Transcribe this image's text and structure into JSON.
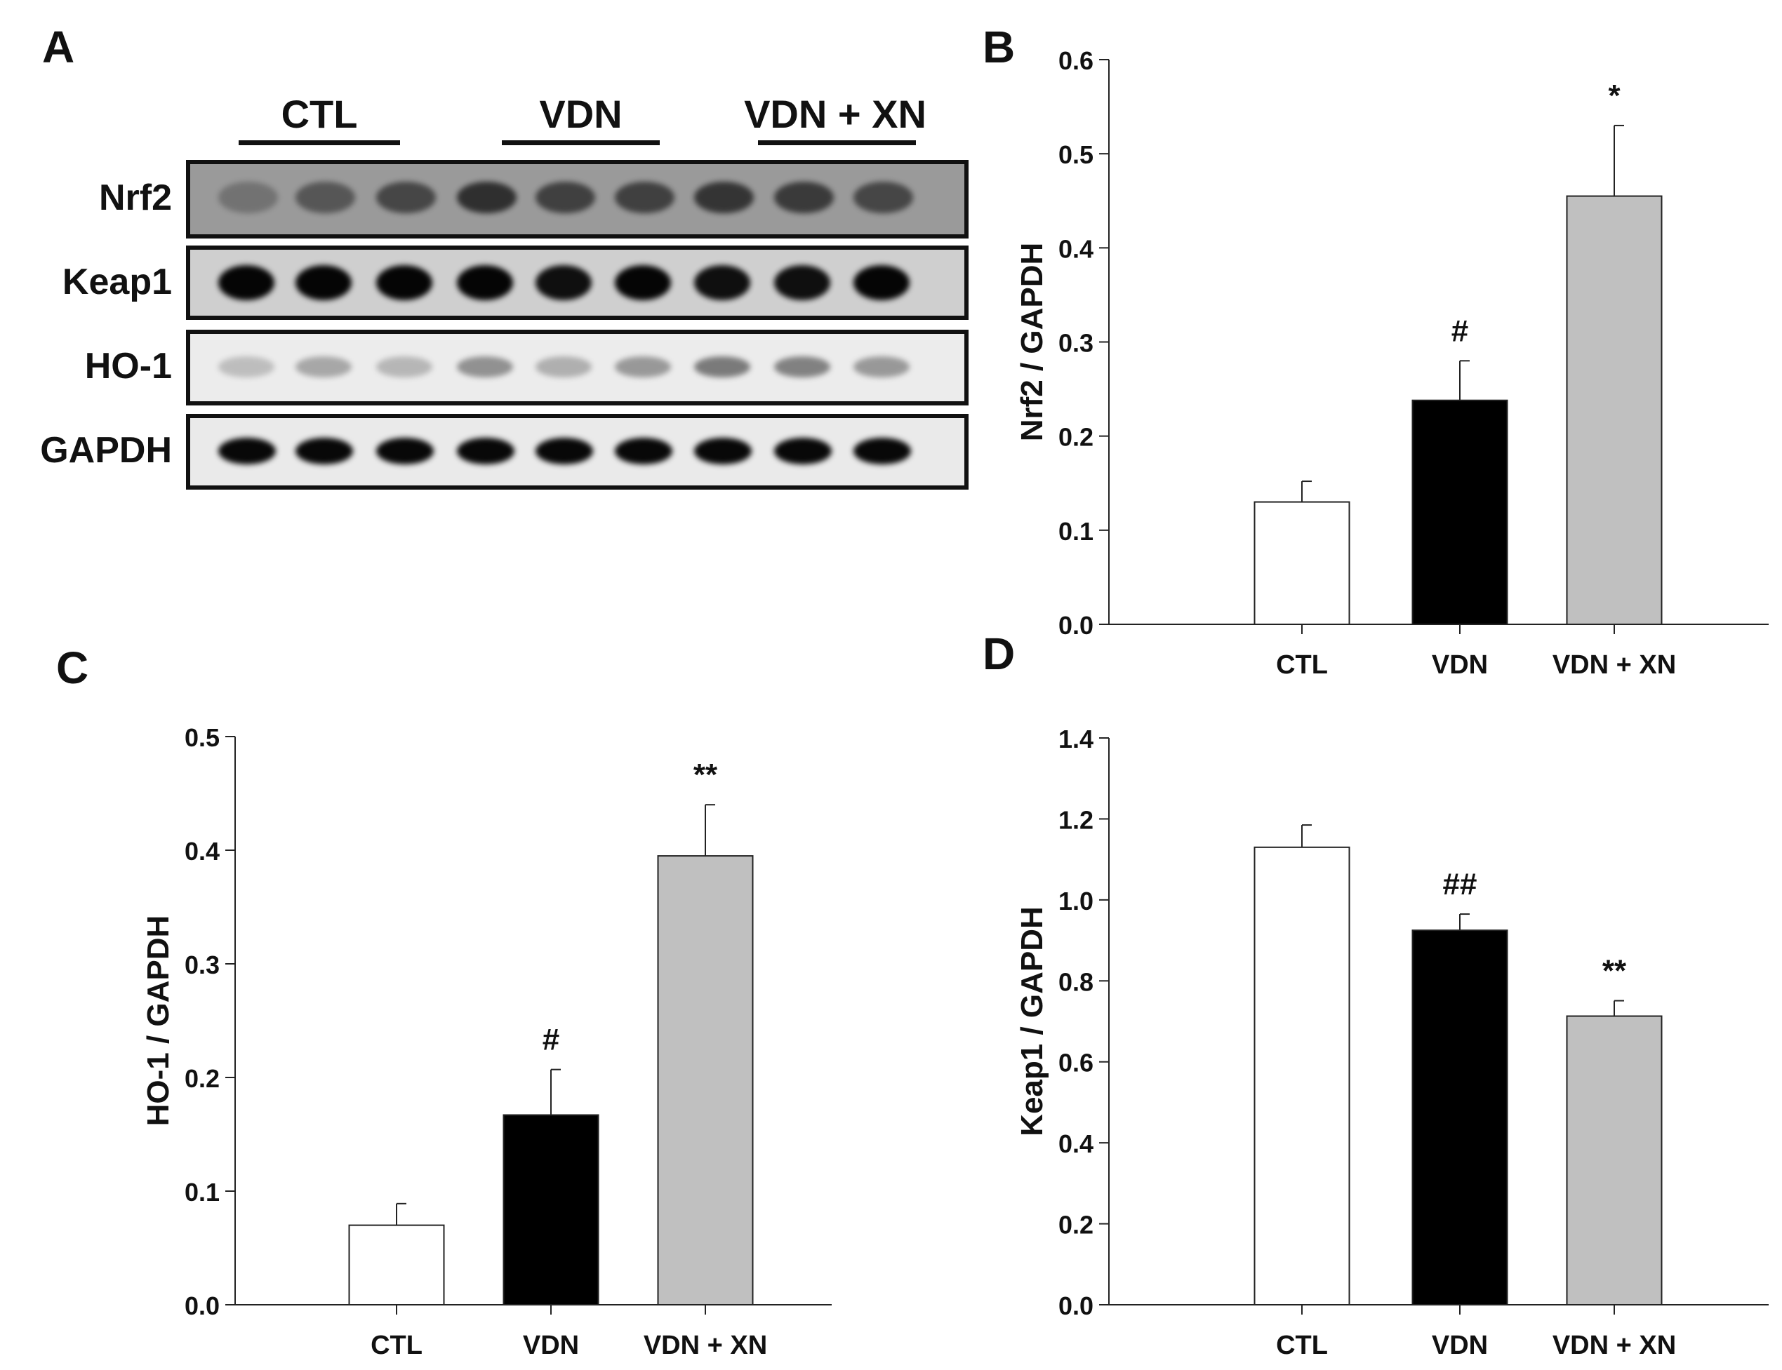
{
  "panels": {
    "a": "A",
    "b": "B",
    "c": "C",
    "d": "D"
  },
  "blot": {
    "groups": [
      "CTL",
      "VDN",
      "VDN + XN"
    ],
    "rows": [
      "Nrf2",
      "Keap1",
      "HO-1",
      "GAPDH"
    ]
  },
  "colors": {
    "ctl": "#ffffff",
    "vdn": "#000000",
    "vdnxn": "#c0c0c0"
  },
  "chart_data": [
    {
      "panel": "B",
      "type": "bar",
      "categories": [
        "CTL",
        "VDN",
        "VDN + XN"
      ],
      "values": [
        0.13,
        0.238,
        0.455
      ],
      "errors": [
        0.022,
        0.042,
        0.075
      ],
      "annotations": [
        "",
        "#",
        "*"
      ],
      "ylabel": "Nrf2 / GAPDH",
      "xlabel": "",
      "ylim": [
        0,
        0.6
      ],
      "yticks": [
        "0.0",
        "0.1",
        "0.2",
        "0.3",
        "0.4",
        "0.5",
        "0.6"
      ]
    },
    {
      "panel": "C",
      "type": "bar",
      "categories": [
        "CTL",
        "VDN",
        "VDN + XN"
      ],
      "values": [
        0.07,
        0.167,
        0.395
      ],
      "errors": [
        0.019,
        0.04,
        0.045
      ],
      "annotations": [
        "",
        "#",
        "**"
      ],
      "ylabel": "HO-1 / GAPDH",
      "xlabel": "",
      "ylim": [
        0,
        0.5
      ],
      "yticks": [
        "0.0",
        "0.1",
        "0.2",
        "0.3",
        "0.4",
        "0.5"
      ]
    },
    {
      "panel": "D",
      "type": "bar",
      "categories": [
        "CTL",
        "VDN",
        "VDN + XN"
      ],
      "values": [
        1.13,
        0.925,
        0.713
      ],
      "errors": [
        0.055,
        0.04,
        0.038
      ],
      "annotations": [
        "",
        "##",
        "**"
      ],
      "ylabel": "Keap1 / GAPDH",
      "xlabel": "",
      "ylim": [
        0,
        1.4
      ],
      "yticks": [
        "0.0",
        "0.2",
        "0.4",
        "0.6",
        "0.8",
        "1.0",
        "1.2",
        "1.4"
      ]
    }
  ]
}
